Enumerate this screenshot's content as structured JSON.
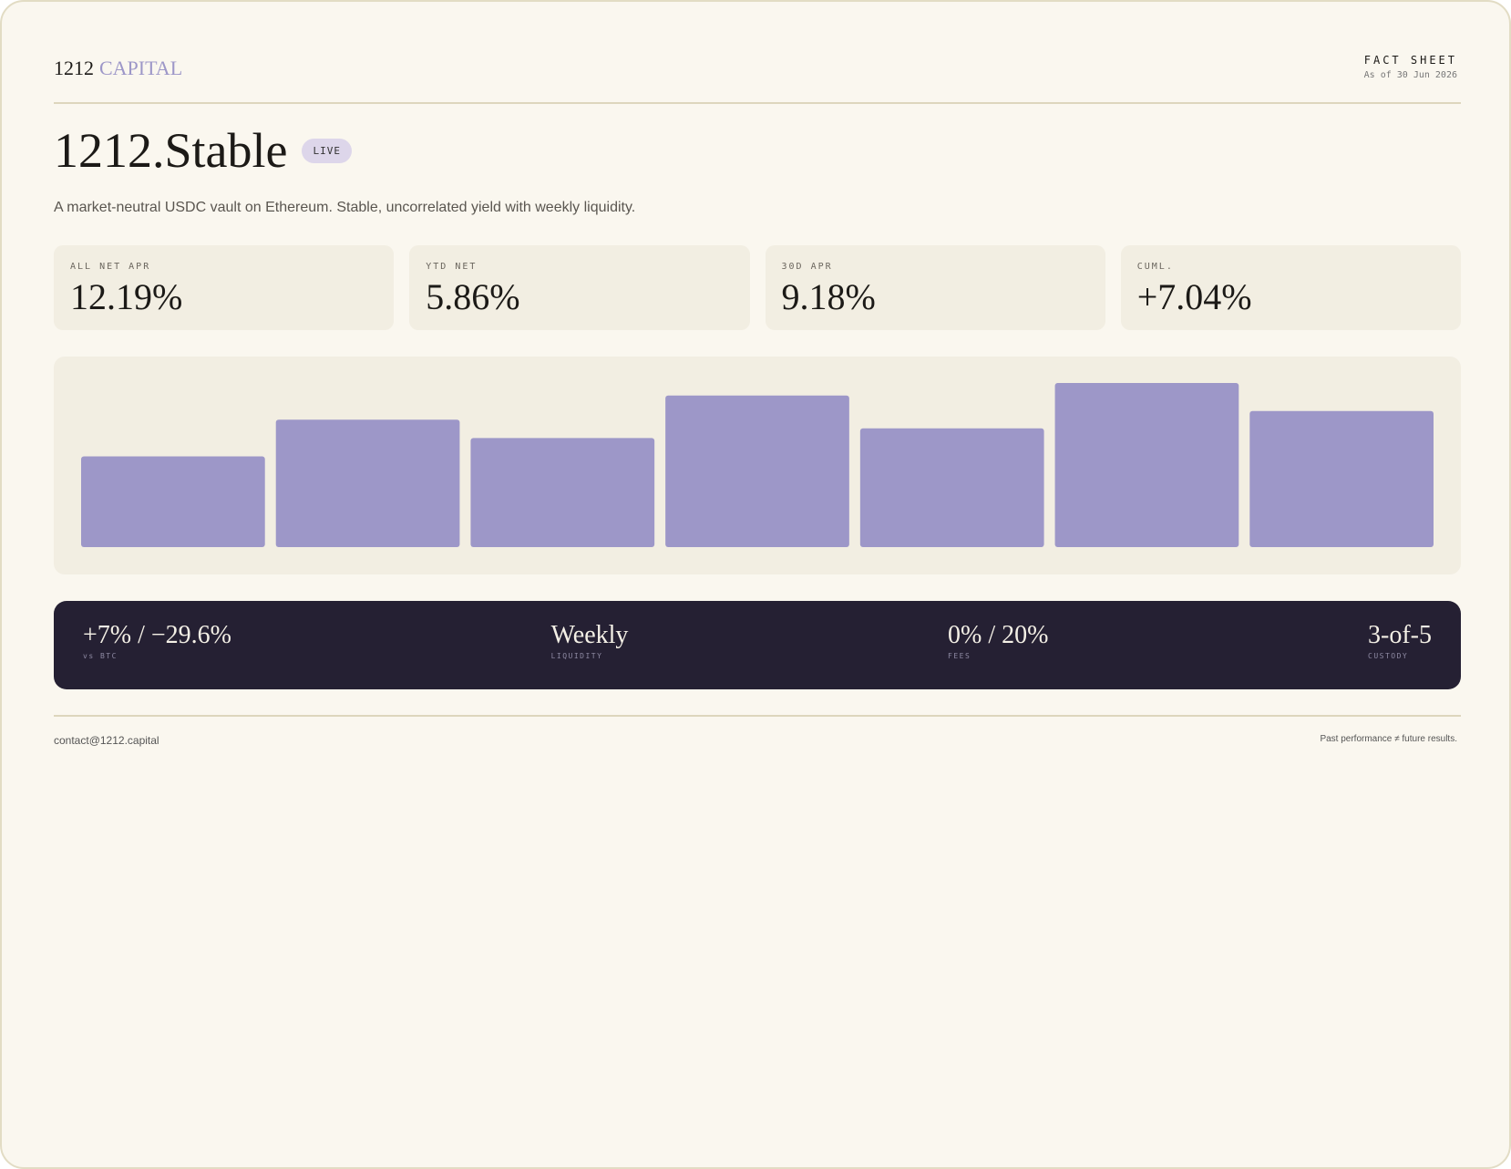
{
  "header": {
    "brand": "1212",
    "brand_accent": "CAPITAL",
    "doc_type": "FACT SHEET",
    "as_of": "As of 30 Jun 2026"
  },
  "fund": {
    "name": "1212.Stable",
    "status": "LIVE",
    "description": "A market-neutral USDC vault on Ethereum. Stable, uncorrelated yield with weekly liquidity."
  },
  "metrics": [
    {
      "label": "ALL NET APR",
      "value": "12.19%"
    },
    {
      "label": "YTD NET",
      "value": "5.86%"
    },
    {
      "label": "30D APR",
      "value": "9.18%"
    },
    {
      "label": "CUML.",
      "value": "+7.04%"
    }
  ],
  "chart_data": {
    "type": "bar",
    "values": [
      0.94,
      1.32,
      1.13,
      1.57,
      1.23,
      1.7,
      1.41
    ],
    "color": "#9d97c8",
    "ylim": [
      0,
      1.7
    ]
  },
  "terms": [
    {
      "value": "+7% / −29.6%",
      "label": "vs BTC"
    },
    {
      "value": "Weekly",
      "label": "LIQUIDITY"
    },
    {
      "value": "0% / 20%",
      "label": "FEES"
    },
    {
      "value": "3-of-5",
      "label": "CUSTODY"
    }
  ],
  "footer": {
    "contact": "contact@1212.capital",
    "disclaimer": "Past performance ≠ future results."
  }
}
